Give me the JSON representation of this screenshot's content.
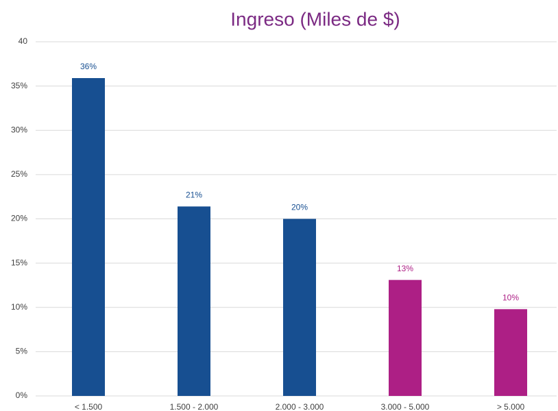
{
  "chart_data": {
    "type": "bar",
    "title": "Ingreso (Miles de $)",
    "categories": [
      "< 1.500",
      "1.500 - 2.000",
      "2.000 - 3.000",
      "3.000 - 5.000",
      "> 5.000"
    ],
    "values": [
      35.9,
      21.4,
      20,
      13.1,
      9.8
    ],
    "value_labels": [
      "36%",
      "21%",
      "20%",
      "13%",
      "10%"
    ],
    "colors": [
      "#174f91",
      "#174f91",
      "#174f91",
      "#ad1f85",
      "#ad1f85"
    ],
    "ylim": [
      0,
      40
    ],
    "yticks": [
      {
        "value": 0,
        "label": "0%"
      },
      {
        "value": 5,
        "label": "5%"
      },
      {
        "value": 10,
        "label": "10%"
      },
      {
        "value": 15,
        "label": "15%"
      },
      {
        "value": 20,
        "label": "20%"
      },
      {
        "value": 25,
        "label": "25%"
      },
      {
        "value": 30,
        "label": "30%"
      },
      {
        "value": 35,
        "label": "35%"
      },
      40
    ],
    "grid": true
  }
}
